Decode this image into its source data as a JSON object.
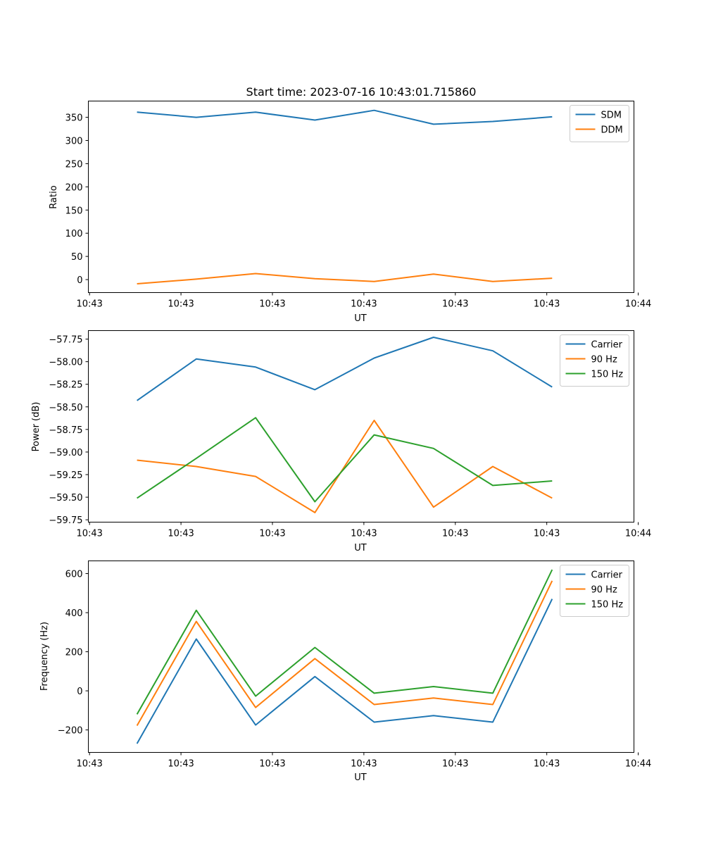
{
  "title": "Start time: 2023-07-16 10:43:01.715860",
  "chart_data": [
    {
      "type": "line",
      "xlabel": "UT",
      "ylabel": "Ratio",
      "x": [
        1,
        2,
        3,
        4,
        5,
        6,
        7,
        8
      ],
      "xlim": [
        0.18,
        9.38
      ],
      "xticks": [
        {
          "v": 0.2,
          "label": "10:43"
        },
        {
          "v": 1.742,
          "label": "10:43"
        },
        {
          "v": 3.284,
          "label": "10:43"
        },
        {
          "v": 4.826,
          "label": "10:43"
        },
        {
          "v": 6.368,
          "label": "10:43"
        },
        {
          "v": 7.91,
          "label": "10:43"
        },
        {
          "v": 9.452,
          "label": "10:44"
        }
      ],
      "ylim": [
        -28,
        385
      ],
      "yticks": [
        0,
        50,
        100,
        150,
        200,
        250,
        300,
        350
      ],
      "ytick_labels": [
        "0",
        "50",
        "100",
        "150",
        "200",
        "250",
        "300",
        "350"
      ],
      "legend": "top-right",
      "series": [
        {
          "name": "SDM",
          "color": "#1f77b4",
          "values": [
            361,
            350,
            361,
            344,
            365,
            335,
            341,
            351
          ]
        },
        {
          "name": "DDM",
          "color": "#ff7f0e",
          "values": [
            -9,
            1,
            13,
            2,
            -4,
            12,
            -4,
            3
          ]
        }
      ]
    },
    {
      "type": "line",
      "xlabel": "UT",
      "ylabel": "Power (dB)",
      "x": [
        1,
        2,
        3,
        4,
        5,
        6,
        7,
        8
      ],
      "xlim": [
        0.18,
        9.38
      ],
      "xticks": [
        {
          "v": 0.2,
          "label": "10:43"
        },
        {
          "v": 1.742,
          "label": "10:43"
        },
        {
          "v": 3.284,
          "label": "10:43"
        },
        {
          "v": 4.826,
          "label": "10:43"
        },
        {
          "v": 6.368,
          "label": "10:43"
        },
        {
          "v": 7.91,
          "label": "10:43"
        },
        {
          "v": 9.452,
          "label": "10:44"
        }
      ],
      "ylim": [
        -59.776,
        -57.656
      ],
      "yticks": [
        -59.75,
        -59.5,
        -59.25,
        -59.0,
        -58.75,
        -58.5,
        -58.25,
        -58.0,
        -57.75
      ],
      "ytick_labels": [
        "−59.75",
        "−59.50",
        "−59.25",
        "−59.00",
        "−58.75",
        "−58.50",
        "−58.25",
        "−58.00",
        "−57.75"
      ],
      "legend": "top-right",
      "series": [
        {
          "name": "Carrier",
          "color": "#1f77b4",
          "values": [
            -58.43,
            -57.97,
            -58.06,
            -58.31,
            -57.96,
            -57.73,
            -57.88,
            -58.28
          ]
        },
        {
          "name": "90 Hz",
          "color": "#ff7f0e",
          "values": [
            -59.09,
            -59.16,
            -59.27,
            -59.67,
            -58.65,
            -59.61,
            -59.16,
            -59.51
          ]
        },
        {
          "name": "150 Hz",
          "color": "#2ca02c",
          "values": [
            -59.51,
            -59.07,
            -58.62,
            -59.55,
            -58.81,
            -58.96,
            -59.37,
            -59.32
          ]
        }
      ]
    },
    {
      "type": "line",
      "xlabel": "UT",
      "ylabel": "Frequency (Hz)",
      "x": [
        1,
        2,
        3,
        4,
        5,
        6,
        7,
        8
      ],
      "xlim": [
        0.18,
        9.38
      ],
      "xticks": [
        {
          "v": 0.2,
          "label": "10:43"
        },
        {
          "v": 1.742,
          "label": "10:43"
        },
        {
          "v": 3.284,
          "label": "10:43"
        },
        {
          "v": 4.826,
          "label": "10:43"
        },
        {
          "v": 6.368,
          "label": "10:43"
        },
        {
          "v": 7.91,
          "label": "10:43"
        },
        {
          "v": 9.452,
          "label": "10:44"
        }
      ],
      "ylim": [
        -315,
        665
      ],
      "yticks": [
        -200,
        0,
        200,
        400,
        600
      ],
      "ytick_labels": [
        "−200",
        "0",
        "200",
        "400",
        "600"
      ],
      "legend": "top-right",
      "series": [
        {
          "name": "Carrier",
          "color": "#1f77b4",
          "values": [
            -270,
            265,
            -175,
            73,
            -160,
            -127,
            -160,
            470
          ]
        },
        {
          "name": "90 Hz",
          "color": "#ff7f0e",
          "values": [
            -178,
            355,
            -85,
            165,
            -70,
            -37,
            -70,
            563
          ]
        },
        {
          "name": "150 Hz",
          "color": "#2ca02c",
          "values": [
            -120,
            412,
            -27,
            222,
            -12,
            22,
            -12,
            620
          ]
        }
      ]
    }
  ]
}
